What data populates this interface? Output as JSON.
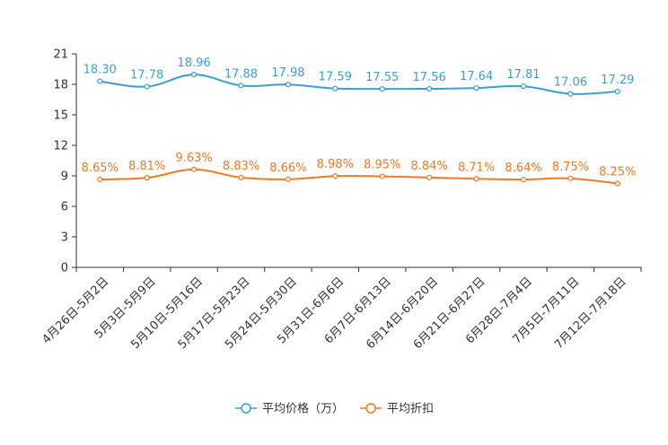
{
  "chart_data": {
    "type": "line",
    "categories": [
      "4月26日-5月2日",
      "5月3日-5月9日",
      "5月10日-5月16日",
      "5月17日-5月23日",
      "5月24日-5月30日",
      "5月31日-6月6日",
      "6月7日-6月13日",
      "6月14日-6月20日",
      "6月21日-6月27日",
      "6月28日-7月4日",
      "7月5日-7月11日",
      "7月12日-7月18日"
    ],
    "ylim": [
      0,
      21
    ],
    "yticks": [
      0,
      3,
      6,
      9,
      12,
      15,
      18,
      21
    ],
    "series": [
      {
        "name": "平均价格（万）",
        "color": "#3a9fd0",
        "values": [
          18.3,
          17.78,
          18.96,
          17.88,
          17.98,
          17.59,
          17.55,
          17.56,
          17.64,
          17.81,
          17.06,
          17.29
        ],
        "labels": [
          "18.30",
          "17.78",
          "18.96",
          "17.88",
          "17.98",
          "17.59",
          "17.55",
          "17.56",
          "17.64",
          "17.81",
          "17.06",
          "17.29"
        ]
      },
      {
        "name": "平均折扣",
        "color": "#f47920",
        "values": [
          8.65,
          8.81,
          9.63,
          8.83,
          8.66,
          8.98,
          8.95,
          8.84,
          8.71,
          8.64,
          8.75,
          8.25
        ],
        "labels": [
          "8.65%",
          "8.81%",
          "9.63%",
          "8.83%",
          "8.66%",
          "8.98%",
          "8.95%",
          "8.84%",
          "8.71%",
          "8.64%",
          "8.75%",
          "8.25%"
        ]
      }
    ]
  }
}
